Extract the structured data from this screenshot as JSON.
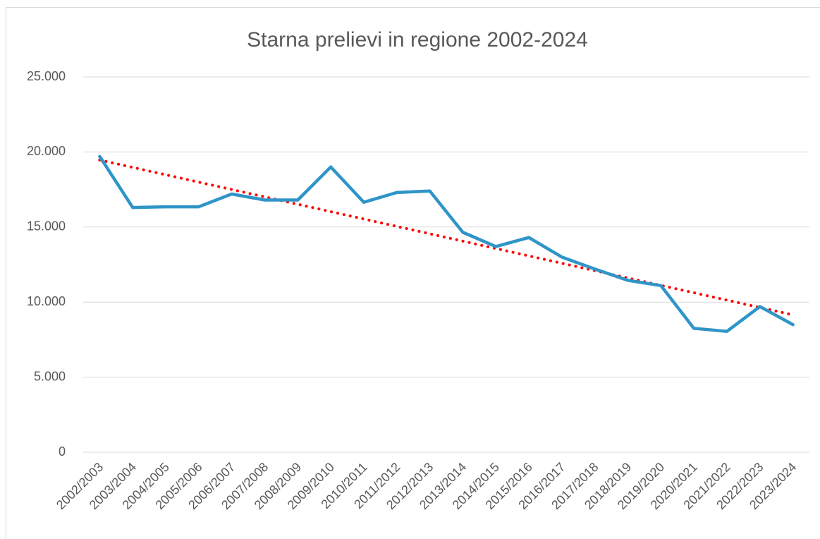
{
  "chart_data": {
    "type": "line",
    "title": "Starna prelievi in regione 2002-2024",
    "categories": [
      "2002/2003",
      "2003/2004",
      "2004/2005",
      "2005/2006",
      "2006/2007",
      "2007/2008",
      "2008/2009",
      "2009/2010",
      "2010/2011",
      "2011/2012",
      "2012/2013",
      "2013/2014",
      "2014/2015",
      "2015/2016",
      "2016/2017",
      "2017/2018",
      "2018/2019",
      "2019/2020",
      "2020/2021",
      "2021/2022",
      "2022/2023",
      "2023/2024"
    ],
    "series": [
      {
        "color": "#2f95c8",
        "values": [
          19700,
          16300,
          16350,
          16350,
          17200,
          16800,
          16800,
          19000,
          16650,
          17300,
          17400,
          14650,
          13700,
          14300,
          13000,
          12200,
          11450,
          11100,
          8250,
          8050,
          9700,
          8500
        ]
      }
    ],
    "trendline": {
      "type": "linear",
      "color": "#ff0000",
      "style": "dotted"
    },
    "ylim": [
      0,
      25000
    ],
    "yticks": [
      0,
      {
        "value": 5000,
        "label": "5.000"
      },
      {
        "value": 10000,
        "label": "10.000"
      },
      {
        "value": 15000,
        "label": "15.000"
      },
      {
        "value": 20000,
        "label": "20.000"
      },
      {
        "value": 25000,
        "label": "25.000"
      }
    ],
    "grid": true
  }
}
